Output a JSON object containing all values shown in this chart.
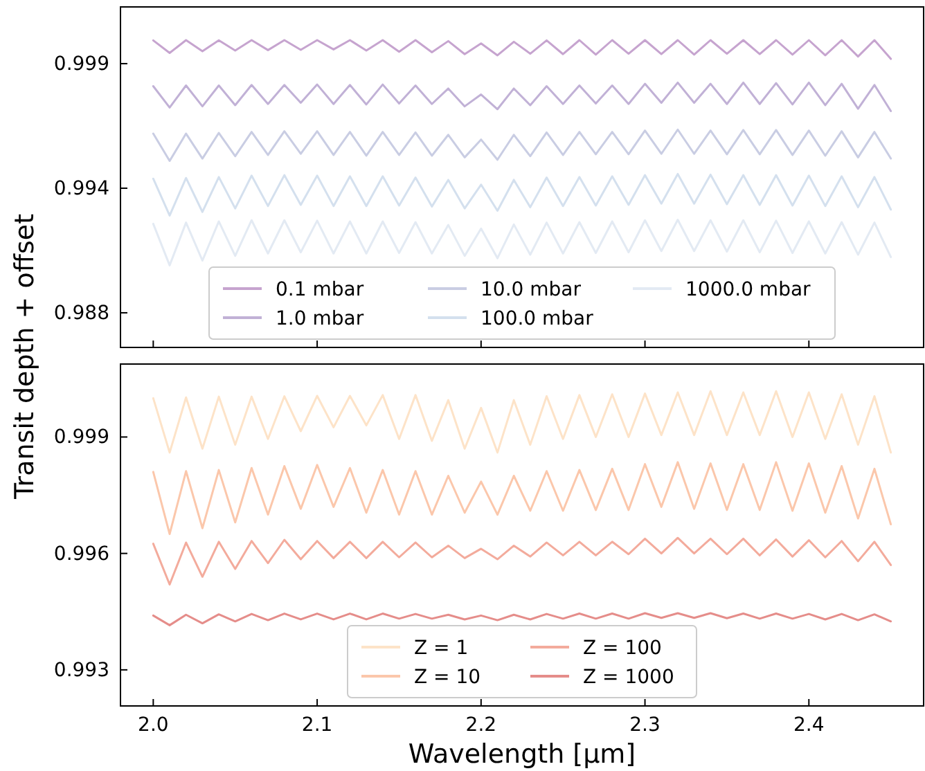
{
  "chart_data": [
    {
      "type": "line",
      "ylabel": "Transit depth + offset",
      "x": [
        2.0,
        2.01,
        2.02,
        2.03,
        2.04,
        2.05,
        2.06,
        2.07,
        2.08,
        2.09,
        2.1,
        2.11,
        2.12,
        2.13,
        2.14,
        2.15,
        2.16,
        2.17,
        2.18,
        2.19,
        2.2,
        2.21,
        2.22,
        2.23,
        2.24,
        2.25,
        2.26,
        2.27,
        2.28,
        2.29,
        2.3,
        2.31,
        2.32,
        2.33,
        2.34,
        2.35,
        2.36,
        2.37,
        2.38,
        2.39,
        2.4,
        2.41,
        2.42,
        2.43,
        2.44,
        2.45
      ],
      "xlim": [
        1.98,
        2.47
      ],
      "xticks": [
        {
          "value": 2.0,
          "label": null
        },
        {
          "value": 2.1,
          "label": null
        },
        {
          "value": 2.2,
          "label": null
        },
        {
          "value": 2.3,
          "label": null
        },
        {
          "value": 2.4,
          "label": null
        }
      ],
      "ylim": [
        0.98704,
        1.00139
      ],
      "yticks": [
        {
          "value": 0.9885,
          "label": "0.988"
        },
        {
          "value": 0.99375,
          "label": "0.994"
        },
        {
          "value": 0.999,
          "label": "0.999"
        }
      ],
      "tick_labels": "y",
      "legend": "bottom",
      "grid": false,
      "marker": "none",
      "line_style": "solid",
      "series": [
        {
          "name": "0.1 mbar",
          "color": "#c6a4cf",
          "values": [
            0.99998,
            0.99945,
            0.99999,
            0.99952,
            0.99998,
            0.99955,
            0.99999,
            0.99957,
            0.99999,
            0.99958,
            0.99999,
            0.9996,
            0.99999,
            0.99955,
            0.99999,
            0.9995,
            0.99999,
            0.99948,
            0.99995,
            0.9994,
            0.99985,
            0.99935,
            0.99992,
            0.99942,
            0.99998,
            0.9994,
            0.99999,
            0.99938,
            0.99999,
            0.99942,
            0.99999,
            0.9994,
            0.99999,
            0.99938,
            0.99999,
            0.99942,
            0.99999,
            0.9994,
            0.99999,
            0.99938,
            0.99999,
            0.99935,
            0.99999,
            0.9993,
            0.99999,
            0.9992
          ]
        },
        {
          "name": "1.0 mbar",
          "color": "#c1b1d6",
          "values": [
            0.99805,
            0.99715,
            0.99808,
            0.9972,
            0.99808,
            0.99725,
            0.9981,
            0.9973,
            0.9981,
            0.99735,
            0.99812,
            0.9973,
            0.9981,
            0.99728,
            0.99812,
            0.99732,
            0.99808,
            0.9973,
            0.99795,
            0.9972,
            0.9977,
            0.99708,
            0.99795,
            0.99725,
            0.99805,
            0.9973,
            0.99808,
            0.99732,
            0.99808,
            0.9973,
            0.99815,
            0.99735,
            0.9982,
            0.99735,
            0.99815,
            0.9973,
            0.9982,
            0.9973,
            0.99818,
            0.99728,
            0.9982,
            0.99725,
            0.99815,
            0.9971,
            0.9981,
            0.997
          ]
        },
        {
          "name": "10.0 mbar",
          "color": "#c9cde3",
          "values": [
            0.99605,
            0.9949,
            0.99605,
            0.995,
            0.99608,
            0.9951,
            0.99612,
            0.99515,
            0.99615,
            0.9952,
            0.99615,
            0.99515,
            0.99612,
            0.99512,
            0.99612,
            0.99515,
            0.9961,
            0.99512,
            0.996,
            0.99505,
            0.9958,
            0.99495,
            0.996,
            0.9951,
            0.9961,
            0.99515,
            0.99612,
            0.99518,
            0.99612,
            0.99518,
            0.99618,
            0.9952,
            0.99622,
            0.9952,
            0.99618,
            0.99518,
            0.9962,
            0.99518,
            0.9962,
            0.99515,
            0.99618,
            0.99512,
            0.99615,
            0.99505,
            0.99612,
            0.995
          ]
        },
        {
          "name": "100.0 mbar",
          "color": "#d4e0ee",
          "values": [
            0.99415,
            0.9926,
            0.99418,
            0.99275,
            0.99422,
            0.9929,
            0.99428,
            0.993,
            0.9943,
            0.99305,
            0.99428,
            0.993,
            0.99425,
            0.993,
            0.99425,
            0.99302,
            0.9942,
            0.99298,
            0.9941,
            0.9929,
            0.9939,
            0.9928,
            0.9941,
            0.99295,
            0.9942,
            0.993,
            0.99422,
            0.99302,
            0.99425,
            0.99305,
            0.9943,
            0.9931,
            0.99435,
            0.9931,
            0.99432,
            0.99308,
            0.9943,
            0.99305,
            0.9943,
            0.99302,
            0.99428,
            0.993,
            0.99425,
            0.99295,
            0.99422,
            0.99285
          ]
        },
        {
          "name": "1000.0 mbar",
          "color": "#e3eaf3",
          "values": [
            0.99225,
            0.9905,
            0.9923,
            0.9907,
            0.99235,
            0.9909,
            0.9924,
            0.991,
            0.9924,
            0.99105,
            0.99238,
            0.991,
            0.99235,
            0.991,
            0.99235,
            0.99102,
            0.99232,
            0.991,
            0.9922,
            0.9909,
            0.99205,
            0.9908,
            0.99222,
            0.99095,
            0.9923,
            0.991,
            0.99232,
            0.99102,
            0.99235,
            0.99105,
            0.9924,
            0.9911,
            0.99242,
            0.9911,
            0.9924,
            0.99108,
            0.9924,
            0.99105,
            0.99238,
            0.99102,
            0.99235,
            0.991,
            0.99232,
            0.99095,
            0.9923,
            0.99085
          ]
        }
      ]
    },
    {
      "type": "line",
      "xlabel": "Wavelength [µm]",
      "x": [
        2.0,
        2.01,
        2.02,
        2.03,
        2.04,
        2.05,
        2.06,
        2.07,
        2.08,
        2.09,
        2.1,
        2.11,
        2.12,
        2.13,
        2.14,
        2.15,
        2.16,
        2.17,
        2.18,
        2.19,
        2.2,
        2.21,
        2.22,
        2.23,
        2.24,
        2.25,
        2.26,
        2.27,
        2.28,
        2.29,
        2.3,
        2.31,
        2.32,
        2.33,
        2.34,
        2.35,
        2.36,
        2.37,
        2.38,
        2.39,
        2.4,
        2.41,
        2.42,
        2.43,
        2.44,
        2.45
      ],
      "xlim": [
        1.98,
        2.47
      ],
      "xticks": [
        {
          "value": 2.0,
          "label": "2.0"
        },
        {
          "value": 2.1,
          "label": "2.1"
        },
        {
          "value": 2.2,
          "label": "2.2"
        },
        {
          "value": 2.3,
          "label": "2.3"
        },
        {
          "value": 2.4,
          "label": "2.4"
        }
      ],
      "ylim": [
        0.99207,
        1.00088
      ],
      "yticks": [
        {
          "value": 0.993,
          "label": "0.993"
        },
        {
          "value": 0.996,
          "label": "0.996"
        },
        {
          "value": 0.999,
          "label": "0.999"
        }
      ],
      "legend": "bottom",
      "grid": false,
      "marker": "none",
      "line_style": "solid",
      "series": [
        {
          "name": "Z = 1",
          "color": "#fde3c8",
          "values": [
            1.0,
            0.9986,
            1.00002,
            0.9987,
            1.00004,
            0.9988,
            1.00004,
            0.99895,
            1.00005,
            0.99915,
            1.00006,
            0.99925,
            1.00006,
            0.9993,
            1.00008,
            0.99895,
            1.00008,
            0.9989,
            0.99995,
            0.9987,
            0.99975,
            0.9986,
            0.99995,
            0.9988,
            1.00005,
            0.99895,
            1.00008,
            0.999,
            1.0001,
            0.999,
            1.00012,
            0.99905,
            1.00015,
            0.99905,
            1.00018,
            0.99905,
            1.00015,
            0.99905,
            1.00018,
            0.999,
            1.00015,
            0.99895,
            1.0001,
            0.9988,
            1.00005,
            0.9986
          ]
        },
        {
          "name": "Z = 10",
          "color": "#fbc7ab",
          "values": [
            0.9981,
            0.9965,
            0.99812,
            0.99665,
            0.99815,
            0.9968,
            0.9982,
            0.997,
            0.99825,
            0.99715,
            0.99828,
            0.9972,
            0.9982,
            0.99705,
            0.99815,
            0.997,
            0.99812,
            0.997,
            0.998,
            0.99705,
            0.99785,
            0.997,
            0.998,
            0.9971,
            0.99812,
            0.9971,
            0.99815,
            0.99712,
            0.99818,
            0.99712,
            0.9983,
            0.9972,
            0.99835,
            0.99715,
            0.99832,
            0.99712,
            0.9983,
            0.99712,
            0.99835,
            0.9971,
            0.99832,
            0.99705,
            0.99825,
            0.9969,
            0.99818,
            0.99675
          ]
        },
        {
          "name": "Z = 100",
          "color": "#f3ab9c",
          "values": [
            0.99625,
            0.9952,
            0.99628,
            0.9954,
            0.9963,
            0.9956,
            0.99632,
            0.99575,
            0.99635,
            0.99585,
            0.99632,
            0.99588,
            0.9963,
            0.99588,
            0.9963,
            0.9959,
            0.99628,
            0.9959,
            0.9962,
            0.99588,
            0.99612,
            0.99585,
            0.9962,
            0.99592,
            0.99628,
            0.99595,
            0.9963,
            0.99595,
            0.9963,
            0.99598,
            0.99638,
            0.996,
            0.9964,
            0.996,
            0.99638,
            0.99598,
            0.99638,
            0.99595,
            0.99636,
            0.99592,
            0.99634,
            0.9959,
            0.99632,
            0.9958,
            0.9963,
            0.9957
          ]
        },
        {
          "name": "Z = 1000",
          "color": "#e58d8a",
          "values": [
            0.9944,
            0.99415,
            0.99442,
            0.9942,
            0.99443,
            0.99425,
            0.99444,
            0.99428,
            0.99445,
            0.9943,
            0.99445,
            0.9943,
            0.99445,
            0.9943,
            0.99445,
            0.99432,
            0.99444,
            0.99432,
            0.99442,
            0.9943,
            0.9944,
            0.99428,
            0.99442,
            0.9943,
            0.99444,
            0.99432,
            0.99445,
            0.99432,
            0.99445,
            0.99432,
            0.99446,
            0.99434,
            0.99446,
            0.99434,
            0.99446,
            0.99433,
            0.99445,
            0.99432,
            0.99445,
            0.99432,
            0.99444,
            0.9943,
            0.99444,
            0.99428,
            0.99443,
            0.99425
          ]
        }
      ]
    }
  ]
}
